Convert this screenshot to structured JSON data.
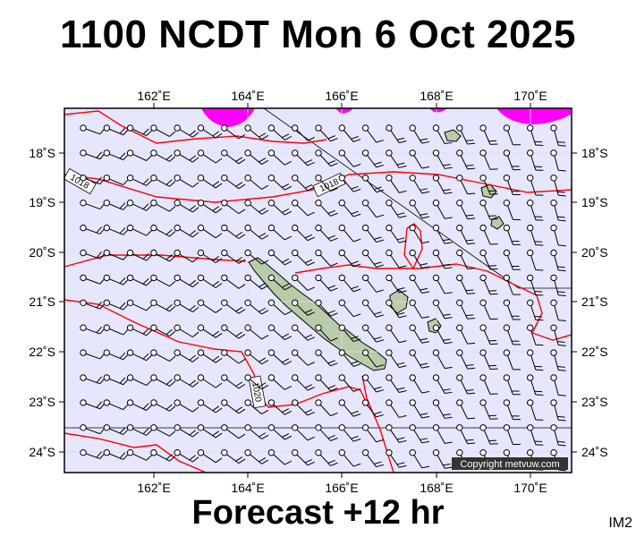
{
  "title": "1100 NCDT Mon 6 Oct 2025",
  "subtitle": "Forecast +12 hr",
  "image_code": "IM2",
  "copyright": "Copyright metvuw.com",
  "lon_labels": [
    "162˚E",
    "164˚E",
    "166˚E",
    "168˚E",
    "170˚E"
  ],
  "lat_labels": [
    "18˚S",
    "19˚S",
    "20˚S",
    "21˚S",
    "22˚S",
    "23˚S",
    "24˚S"
  ],
  "isobar_labels": [
    "1018",
    "1018",
    "1020"
  ],
  "colors": {
    "ocean": "#e6e6ff",
    "land": "#b9cca9",
    "isobar": "#ff0000",
    "rain": "#ff00ff",
    "barb": "#000000"
  }
}
